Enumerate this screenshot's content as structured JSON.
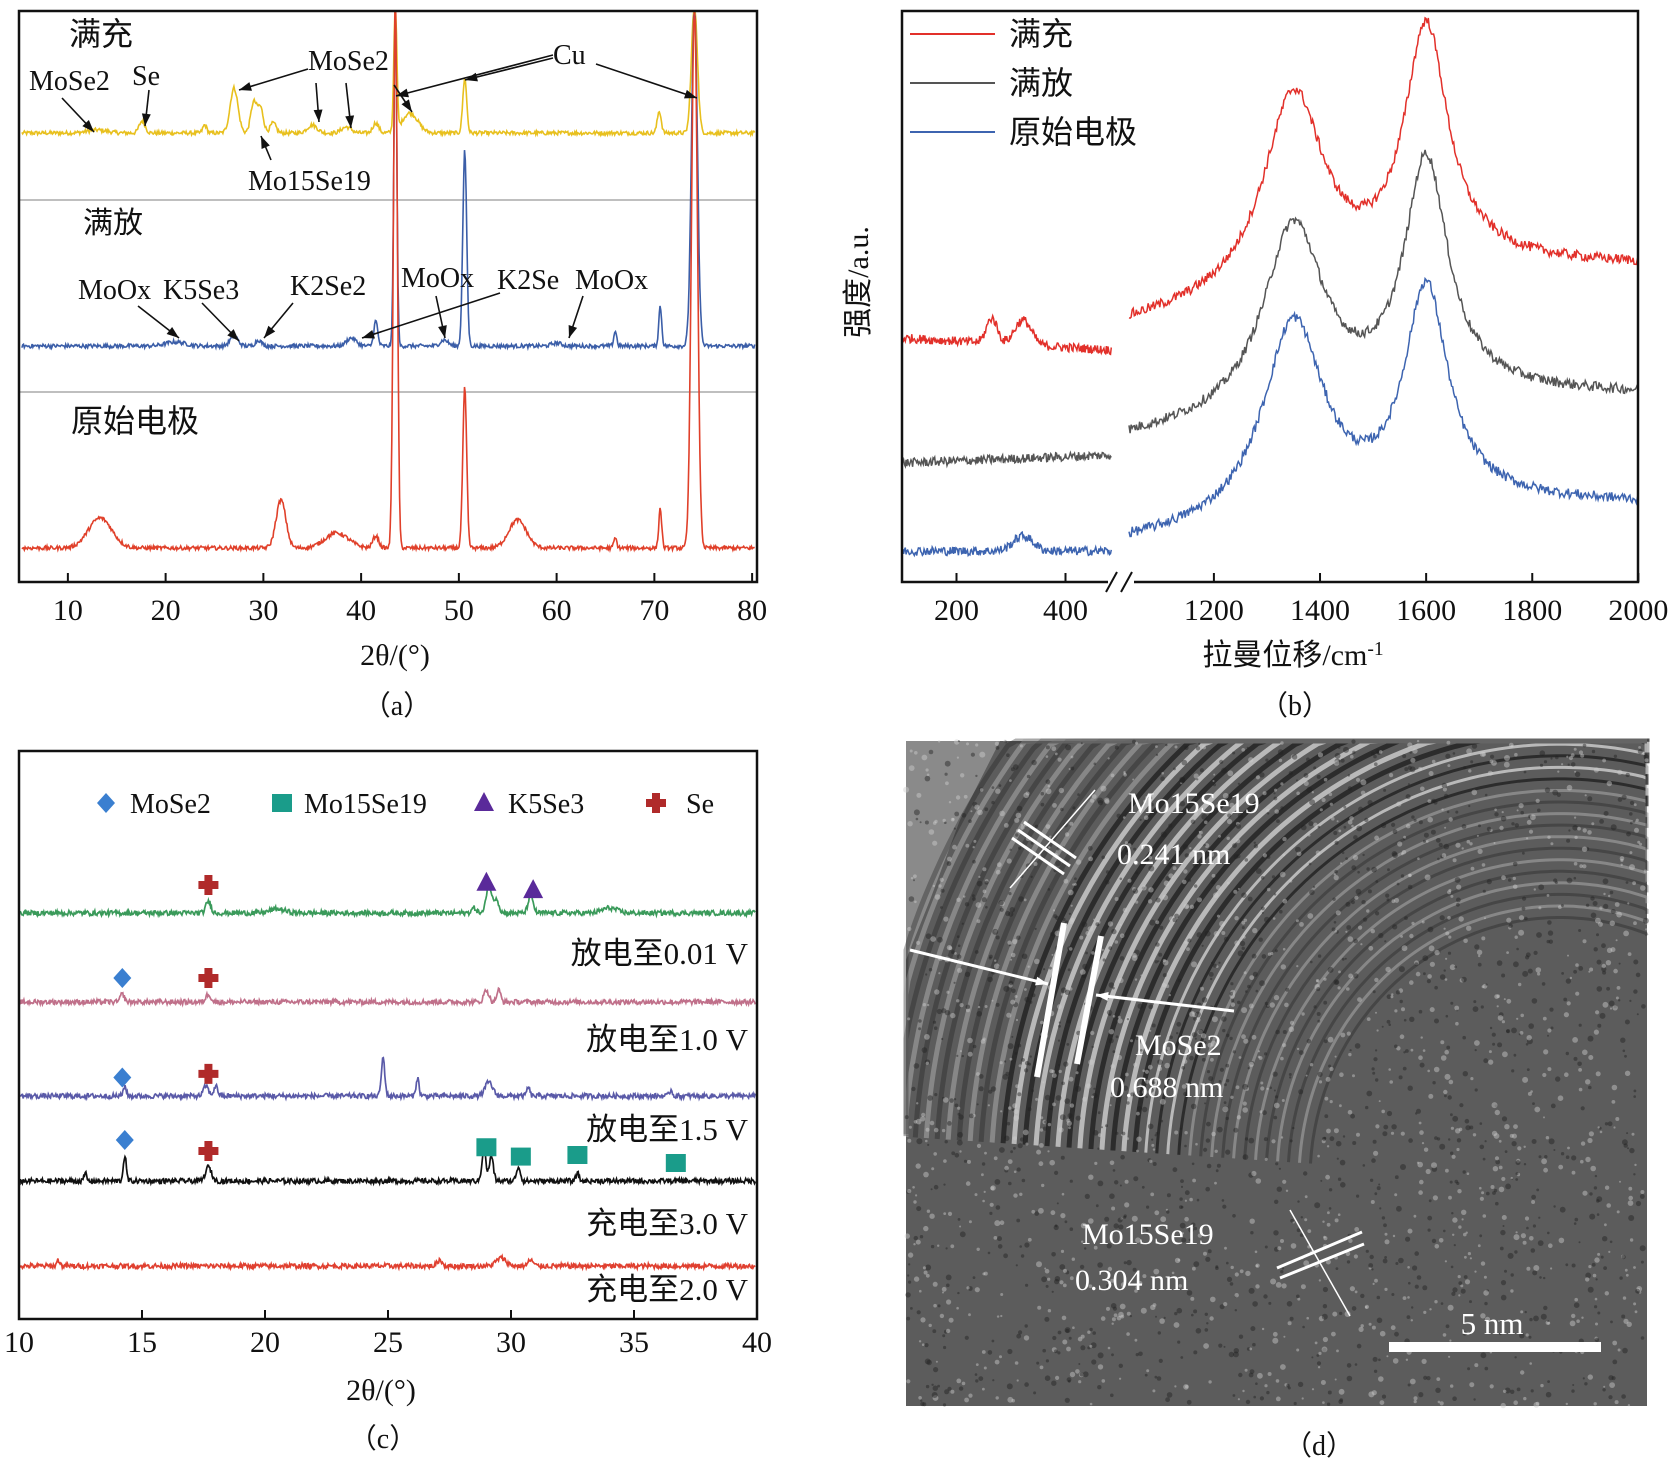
{
  "captions": {
    "a": "（a）",
    "b": "（b）",
    "c": "（c）",
    "d": "（d）"
  },
  "chart_data": [
    {
      "panel": "a",
      "type": "line",
      "title": "",
      "xlabel": "2θ/(°)",
      "ylabel": "",
      "xlim": [
        5,
        80.5
      ],
      "xticks": [
        "10",
        "20",
        "30",
        "40",
        "50",
        "60",
        "70",
        "80"
      ],
      "grid": false,
      "series": [
        {
          "name": "满充",
          "color": "#e8c01e",
          "peaks": [
            [
              13,
              3,
              1
            ],
            [
              17.6,
              12,
              0.3
            ],
            [
              24,
              8,
              0.2
            ],
            [
              27,
              45,
              0.4
            ],
            [
              29,
              30,
              0.3
            ],
            [
              29.7,
              25,
              0.3
            ],
            [
              31,
              10,
              0.3
            ],
            [
              35,
              8,
              0.5
            ],
            [
              38.5,
              6,
              0.5
            ],
            [
              41.5,
              10,
              0.3
            ],
            [
              43.5,
              130,
              0.15
            ],
            [
              45,
              20,
              0.8
            ],
            [
              50.6,
              55,
              0.2
            ],
            [
              70.5,
              22,
              0.2
            ],
            [
              74.1,
              130,
              0.3
            ]
          ]
        },
        {
          "name": "满放",
          "color": "#3b5ea8",
          "peaks": [
            [
              21,
              4,
              1
            ],
            [
              27,
              10,
              0.4
            ],
            [
              29.5,
              6,
              0.3
            ],
            [
              39,
              8,
              0.5
            ],
            [
              41.5,
              25,
              0.2
            ],
            [
              43.5,
              340,
              0.15
            ],
            [
              48.5,
              6,
              0.4
            ],
            [
              50.6,
              195,
              0.2
            ],
            [
              60,
              3,
              0.5
            ],
            [
              66,
              15,
              0.15
            ],
            [
              70.6,
              40,
              0.15
            ],
            [
              74.1,
              340,
              0.3
            ]
          ]
        },
        {
          "name": "原始电极",
          "color": "#e0402a",
          "peaks": [
            [
              13.3,
              30,
              1.2
            ],
            [
              31.8,
              48,
              0.5
            ],
            [
              37.5,
              15,
              1.2
            ],
            [
              41.5,
              12,
              0.3
            ],
            [
              43.5,
              545,
              0.2
            ],
            [
              50.6,
              160,
              0.2
            ],
            [
              56,
              28,
              0.9
            ],
            [
              66,
              10,
              0.15
            ],
            [
              70.6,
              40,
              0.15
            ],
            [
              74.1,
              545,
              0.3
            ]
          ]
        }
      ],
      "annotations": [
        "满充",
        "MoSe2",
        "Se",
        "MoSe2",
        "Cu",
        "Mo15Se19",
        "满放",
        "MoOx",
        "K5Se3",
        "K2Se2",
        "MoOx",
        "K2Se",
        "MoOx",
        "原始电极"
      ]
    },
    {
      "panel": "b",
      "type": "line",
      "title": "",
      "xlabel": "拉曼位移/cm-1",
      "ylabel": "强度/a.u.",
      "xlim_segments": [
        [
          100,
          485
        ],
        [
          1040,
          2000
        ]
      ],
      "xticks": [
        "200",
        "400",
        "1200",
        "1400",
        "1600",
        "1800",
        "2000"
      ],
      "grid": false,
      "legend": {
        "position": "top-left",
        "entries": [
          "满充",
          "满放",
          "原始电极"
        ]
      },
      "series": [
        {
          "name": "满充",
          "color": "#e2302a",
          "low_peaks": [
            [
              265,
              25,
              10
            ],
            [
              322,
              25,
              15
            ]
          ],
          "low_drift": -12,
          "D_band": [
            1350,
            200,
            70
          ],
          "G_band": [
            1600,
            240,
            50
          ],
          "tail": 60
        },
        {
          "name": "满放",
          "color": "#555555",
          "low_peaks": [],
          "low_drift": 8,
          "D_band": [
            1350,
            190,
            70
          ],
          "G_band": [
            1600,
            235,
            50
          ],
          "tail": 45
        },
        {
          "name": "原始电极",
          "color": "#3d64b0",
          "low_peaks": [
            [
              322,
              15,
              18
            ]
          ],
          "low_drift": 0,
          "D_band": [
            1350,
            200,
            70
          ],
          "G_band": [
            1600,
            215,
            50
          ],
          "tail": 40
        }
      ]
    },
    {
      "panel": "c",
      "type": "line",
      "title": "",
      "xlabel": "2θ/(°)",
      "ylabel": "",
      "xlim": [
        10,
        40
      ],
      "xticks": [
        "10",
        "15",
        "20",
        "25",
        "30",
        "35",
        "40"
      ],
      "grid": false,
      "legend": {
        "position": "top",
        "entries": [
          {
            "label": "MoSe2",
            "marker": "diamond",
            "color": "#3a7fd0"
          },
          {
            "label": "Mo15Se19",
            "marker": "square",
            "color": "#1a9c8a"
          },
          {
            "label": "K5Se3",
            "marker": "triangle",
            "color": "#5a2a9a"
          },
          {
            "label": "Se",
            "marker": "cross",
            "color": "#b02a2a"
          }
        ]
      },
      "series": [
        {
          "name": "放电至0.01 V",
          "color": "#3a9a5a",
          "peaks": [
            [
              17.7,
              12,
              0.1
            ],
            [
              20.5,
              4,
              0.3
            ],
            [
              28.5,
              5,
              0.1
            ],
            [
              29.1,
              30,
              0.1
            ],
            [
              29.4,
              15,
              0.1
            ],
            [
              30.8,
              18,
              0.1
            ],
            [
              34,
              5,
              0.3
            ]
          ],
          "markers": [
            [
              "cross",
              17.7
            ],
            [
              "triangle",
              29.0
            ],
            [
              "triangle",
              30.9
            ]
          ]
        },
        {
          "name": "放电至1.0 V",
          "color": "#c0708a",
          "peaks": [
            [
              14.2,
              8,
              0.08
            ],
            [
              17.7,
              8,
              0.1
            ],
            [
              29,
              12,
              0.1
            ],
            [
              29.5,
              12,
              0.08
            ]
          ],
          "markers": [
            [
              "diamond",
              14.2
            ],
            [
              "cross",
              17.7
            ]
          ]
        },
        {
          "name": "放电至1.5 V",
          "color": "#5a5aa8",
          "peaks": [
            [
              14.3,
              10,
              0.06
            ],
            [
              17.6,
              10,
              0.1
            ],
            [
              18,
              10,
              0.08
            ],
            [
              24.8,
              38,
              0.07
            ],
            [
              26.2,
              18,
              0.06
            ],
            [
              29.1,
              14,
              0.15
            ],
            [
              30.7,
              9,
              0.06
            ],
            [
              36.5,
              6,
              0.06
            ]
          ],
          "markers": [
            [
              "diamond",
              14.2
            ],
            [
              "cross",
              17.7
            ]
          ]
        },
        {
          "name": "充电至3.0 V",
          "color": "#111111",
          "peaks": [
            [
              12.7,
              8,
              0.05
            ],
            [
              14.3,
              25,
              0.06
            ],
            [
              17.7,
              14,
              0.12
            ],
            [
              28.9,
              32,
              0.08
            ],
            [
              29.2,
              25,
              0.08
            ],
            [
              30.3,
              14,
              0.08
            ],
            [
              32.7,
              8,
              0.06
            ]
          ],
          "markers": [
            [
              "diamond",
              14.3
            ],
            [
              "cross",
              17.7
            ],
            [
              "square",
              29.0
            ],
            [
              "square",
              30.4
            ],
            [
              "square",
              32.7
            ],
            [
              "square",
              36.7
            ]
          ]
        },
        {
          "name": "充电至2.0 V",
          "color": "#e04030",
          "peaks": [
            [
              11.6,
              6,
              0.06
            ],
            [
              27.1,
              6,
              0.1
            ],
            [
              29.6,
              8,
              0.2
            ],
            [
              30.8,
              6,
              0.1
            ]
          ],
          "markers": []
        }
      ]
    }
  ],
  "tem": {
    "labels": [
      "Mo15Se19",
      "0.241 nm",
      "MoSe2",
      "0.688 nm",
      "Mo15Se19",
      "0.304 nm"
    ],
    "scale_bar": "5 nm"
  }
}
